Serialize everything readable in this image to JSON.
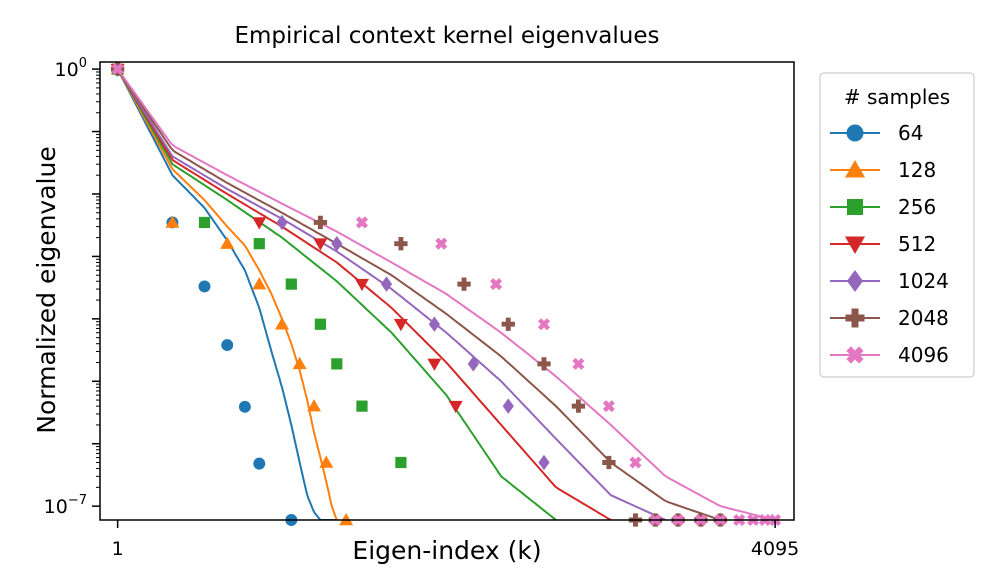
{
  "chart_data": {
    "type": "line",
    "title": "Empirical context kernel eigenvalues",
    "xlabel": "Eigen-index (k)",
    "ylabel": "Normalized eigenvalue",
    "x_ticks": [
      "1",
      "4095"
    ],
    "y_ticks": [
      {
        "base": "10",
        "exp": "0",
        "value": 1
      },
      {
        "base": "10",
        "exp": "−7",
        "value": 1e-07
      }
    ],
    "xscale": "log",
    "yscale": "log",
    "xlim": [
      0.8,
      5200
    ],
    "ylim": [
      6e-08,
      1.3
    ],
    "legend": {
      "title": "# samples",
      "placement": "outside-right"
    },
    "series": [
      {
        "name": "64",
        "color": "#1f77b4",
        "marker": "circle",
        "x": [
          1,
          2,
          3,
          4,
          5,
          6,
          7,
          8,
          9,
          10,
          11,
          12,
          13,
          14,
          15,
          16
        ],
        "y": [
          1,
          0.02,
          0.006,
          0.0018,
          0.0006,
          0.00015,
          3e-05,
          8e-06,
          2e-06,
          5e-07,
          1.5e-07,
          8e-08,
          6e-08,
          6e-08,
          6e-08,
          6e-08
        ],
        "marker_x": [
          1,
          2,
          3,
          4,
          5,
          6,
          9
        ],
        "marker_y": [
          1,
          0.0035,
          0.00033,
          3.8e-05,
          3.9e-06,
          4.8e-07,
          1.8e-08
        ]
      },
      {
        "name": "128",
        "color": "#ff7f0e",
        "marker": "triangle-up",
        "x": [
          1,
          2,
          3,
          4,
          5,
          6,
          7,
          8,
          9,
          10,
          11,
          12,
          13,
          14,
          15,
          16
        ],
        "y": [
          1,
          0.025,
          0.008,
          0.003,
          0.0015,
          0.0006,
          0.00025,
          0.0001,
          4e-05,
          1.5e-05,
          5e-06,
          1.5e-06,
          6e-07,
          2.5e-07,
          1e-07,
          6e-08
        ],
        "marker_x": [
          1,
          2,
          4,
          6,
          8,
          10,
          12,
          14,
          18
        ],
        "marker_y": [
          1,
          0.0035,
          0.0016,
          0.00036,
          8.2e-05,
          1.9e-05,
          4e-06,
          5e-07,
          1.8e-08
        ]
      },
      {
        "name": "256",
        "color": "#2ca02c",
        "marker": "square",
        "x": [
          1,
          2,
          4,
          8,
          16,
          32,
          64,
          128,
          256
        ],
        "y": [
          1,
          0.03,
          0.008,
          0.002,
          0.0004,
          6e-05,
          6e-06,
          3e-07,
          6e-08
        ],
        "marker_x": [
          1,
          3,
          6,
          9,
          13,
          16,
          22,
          36
        ],
        "marker_y": [
          1,
          0.0035,
          0.0016,
          0.00036,
          8.2e-05,
          1.9e-05,
          4e-06,
          5e-07
        ]
      },
      {
        "name": "512",
        "color": "#d62728",
        "marker": "triangle-down",
        "x": [
          1,
          2,
          4,
          8,
          16,
          32,
          64,
          128,
          256,
          512
        ],
        "y": [
          1,
          0.035,
          0.01,
          0.003,
          0.0008,
          0.00015,
          2e-05,
          2e-06,
          2e-07,
          6e-08
        ],
        "marker_x": [
          1,
          6,
          13,
          22,
          36,
          55,
          72
        ],
        "marker_y": [
          1,
          0.0035,
          0.0016,
          0.00036,
          8.2e-05,
          1.9e-05,
          4e-06
        ]
      },
      {
        "name": "1024",
        "color": "#9467bd",
        "marker": "diamond",
        "x": [
          1,
          2,
          4,
          8,
          16,
          32,
          64,
          128,
          256,
          512,
          1024
        ],
        "y": [
          1,
          0.04,
          0.012,
          0.004,
          0.0012,
          0.0003,
          6e-05,
          1e-05,
          1.2e-06,
          1.5e-07,
          6e-08
        ],
        "marker_x": [
          1,
          8,
          16,
          30,
          55,
          90,
          140,
          220
        ],
        "marker_y": [
          1,
          0.0035,
          0.0016,
          0.00036,
          8.2e-05,
          1.9e-05,
          4e-06,
          5e-07
        ]
      },
      {
        "name": "2048",
        "color": "#8c564b",
        "marker": "plus",
        "x": [
          1,
          2,
          4,
          8,
          16,
          32,
          64,
          128,
          256,
          512,
          1024,
          2048
        ],
        "y": [
          1,
          0.05,
          0.015,
          0.005,
          0.0016,
          0.0005,
          0.00012,
          2.5e-05,
          4e-06,
          5e-07,
          1.2e-07,
          6e-08
        ],
        "marker_x": [
          1,
          13,
          36,
          80,
          140,
          220,
          340,
          500,
          700,
          900,
          1200,
          1600,
          2048
        ],
        "marker_y": [
          1,
          0.0035,
          0.0016,
          0.00036,
          8.2e-05,
          1.9e-05,
          4e-06,
          5e-07,
          1.8e-08,
          1.8e-08,
          1.8e-08,
          1.8e-08,
          1.8e-08
        ]
      },
      {
        "name": "4096",
        "color": "#e377c2",
        "marker": "x-filled",
        "x": [
          1,
          2,
          4,
          8,
          16,
          32,
          64,
          128,
          256,
          512,
          1024,
          2048,
          4096
        ],
        "y": [
          1,
          0.06,
          0.02,
          0.007,
          0.0025,
          0.0008,
          0.00025,
          6e-05,
          1.2e-05,
          2e-06,
          3e-07,
          1e-07,
          6e-08
        ],
        "marker_x": [
          1,
          22,
          60,
          120,
          220,
          340,
          500,
          700,
          900,
          1200,
          1600,
          2048,
          2600,
          3100,
          3600,
          4095
        ],
        "marker_y": [
          1,
          0.0035,
          0.0016,
          0.00036,
          8.2e-05,
          1.9e-05,
          4e-06,
          5e-07,
          1.8e-08,
          1.8e-08,
          1.8e-08,
          1.8e-08,
          1.8e-08,
          1.8e-08,
          1.8e-08,
          1.8e-08
        ]
      }
    ]
  }
}
